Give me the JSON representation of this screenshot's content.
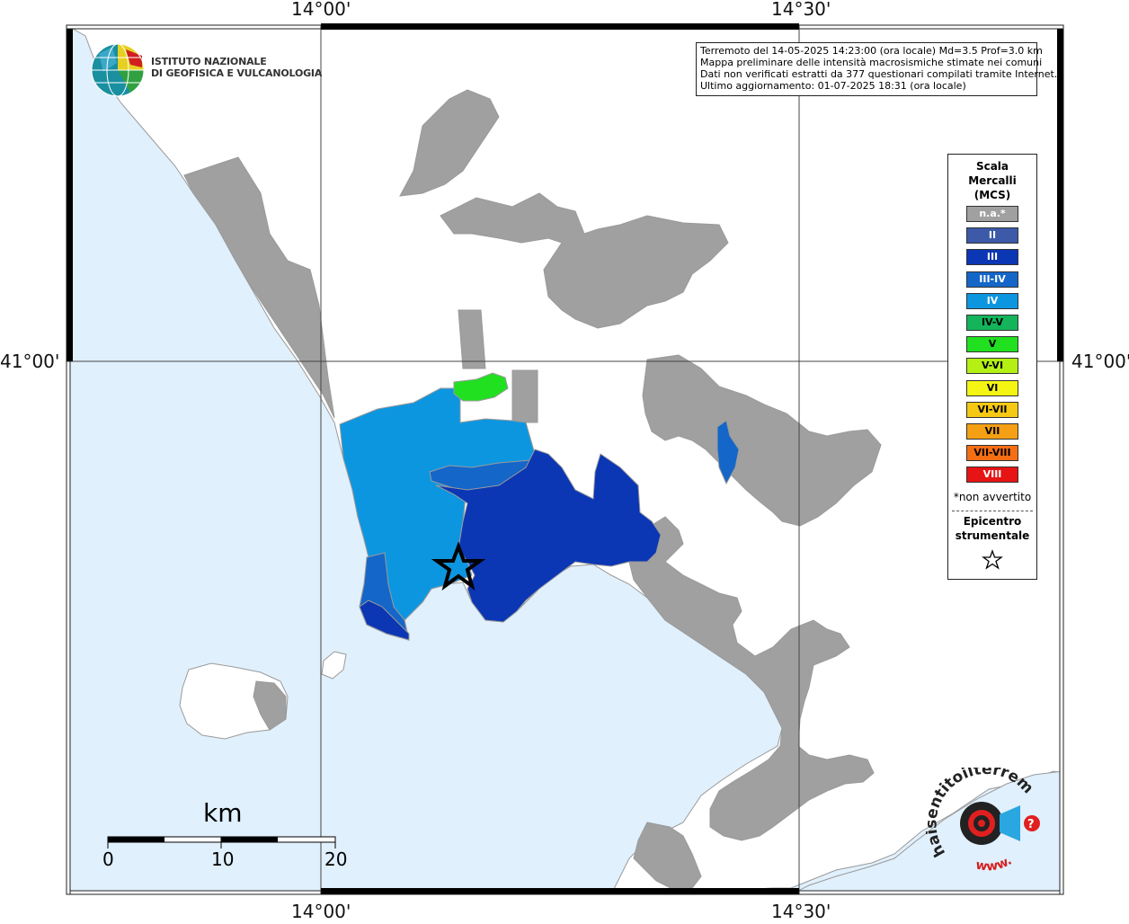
{
  "map": {
    "coords": {
      "top": [
        "14°00'",
        "14°30'"
      ],
      "bottom": [
        "14°00'",
        "14°30'"
      ],
      "left": "41°00'",
      "right": "41°00'"
    },
    "info_lines": [
      "Terremoto del 14-05-2025 14:23:00 (ora locale) Md=3.5 Prof=3.0 km",
      "Mappa preliminare delle intensità macrosismiche stimate nei comuni",
      "Dati non verificati estratti da 377 questionari compilati tramite Internet.",
      "Ultimo aggiornamento: 01-07-2025 18:31 (ora locale)"
    ],
    "logo_lines": [
      "ISTITUTO NAZIONALE",
      "DI GEOFISICA E VULCANOLOGIA"
    ],
    "colors": {
      "sea": "#e0f0fc",
      "land": "#ffffff",
      "na": "#a0a0a0",
      "III": "#0b36b4",
      "III-IV": "#1466c8",
      "IV": "#0d96e0",
      "V": "#20e020"
    }
  },
  "legend": {
    "title_lines": [
      "Scala",
      "Mercalli",
      "(MCS)"
    ],
    "items": [
      {
        "label": "n.a.*",
        "color": "#a0a0a0",
        "text_color": "#ffffff"
      },
      {
        "label": "II",
        "color": "#3c5aa8",
        "text_color": "#ffffff"
      },
      {
        "label": "III",
        "color": "#0b36b4",
        "text_color": "#ffffff"
      },
      {
        "label": "III-IV",
        "color": "#1466c8",
        "text_color": "#ffffff"
      },
      {
        "label": "IV",
        "color": "#0d96e0",
        "text_color": "#ffffff"
      },
      {
        "label": "IV-V",
        "color": "#14b45a",
        "text_color": "#000000"
      },
      {
        "label": "V",
        "color": "#20e020",
        "text_color": "#000000"
      },
      {
        "label": "V-VI",
        "color": "#b4f014",
        "text_color": "#000000"
      },
      {
        "label": "VI",
        "color": "#f5f514",
        "text_color": "#000000"
      },
      {
        "label": "VI-VII",
        "color": "#f5c814",
        "text_color": "#000000"
      },
      {
        "label": "VII",
        "color": "#f5a014",
        "text_color": "#000000"
      },
      {
        "label": "VII-VIII",
        "color": "#f56e14",
        "text_color": "#000000"
      },
      {
        "label": "VIII",
        "color": "#e61414",
        "text_color": "#ffffff"
      }
    ],
    "note": "*non avvertito",
    "epicenter_lines": [
      "Epicentro",
      "strumentale"
    ],
    "epicenter_symbol": "star-icon"
  },
  "scalebar": {
    "title": "km",
    "labels": [
      "0",
      "10",
      "20"
    ]
  },
  "hst_logo": {
    "text_top": "haisentitoilterremoto.it",
    "text_bottom": "www.",
    "symbol": "?"
  }
}
